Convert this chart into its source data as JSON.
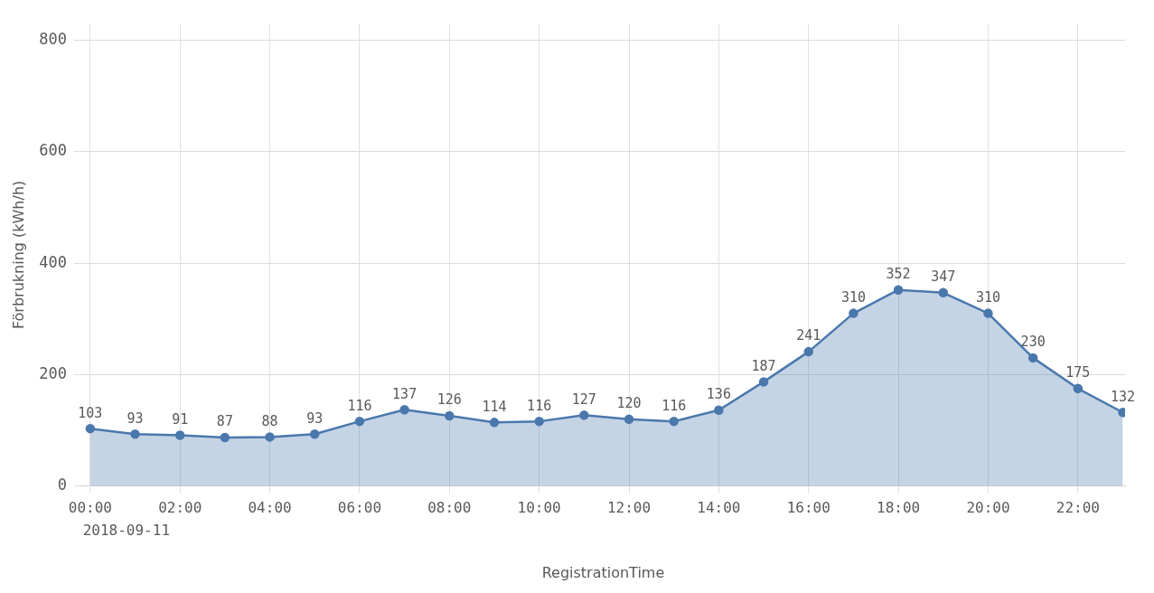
{
  "chart_data": {
    "type": "area",
    "xlabel": "RegistrationTime",
    "ylabel": "Förbrukning (kWh/h)",
    "x": [
      0,
      1,
      2,
      3,
      4,
      5,
      6,
      7,
      8,
      9,
      10,
      11,
      12,
      13,
      14,
      15,
      16,
      17,
      18,
      19,
      20,
      21,
      22,
      23
    ],
    "series": [
      {
        "color": "#4a78ad",
        "values": [
          103,
          93,
          91,
          87,
          88,
          93,
          116,
          137,
          126,
          114,
          116,
          127,
          120,
          116,
          136,
          187,
          241,
          310,
          352,
          347,
          310,
          230,
          175,
          132
        ]
      }
    ],
    "xlim": [
      -0.2,
      23.05
    ],
    "xticks": [
      {
        "value": 0,
        "label": "00:00"
      },
      {
        "value": 2,
        "label": "02:00"
      },
      {
        "value": 4,
        "label": "04:00"
      },
      {
        "value": 6,
        "label": "06:00"
      },
      {
        "value": 8,
        "label": "08:00"
      },
      {
        "value": 10,
        "label": "10:00"
      },
      {
        "value": 12,
        "label": "12:00"
      },
      {
        "value": 14,
        "label": "14:00"
      },
      {
        "value": 16,
        "label": "16:00"
      },
      {
        "value": 18,
        "label": "18:00"
      },
      {
        "value": 20,
        "label": "20:00"
      },
      {
        "value": 22,
        "label": "22:00"
      }
    ],
    "ylim": [
      0,
      830
    ],
    "yticks": [
      0,
      200,
      400,
      600,
      800
    ],
    "annotations": [
      "2018-09-11"
    ],
    "grid": true,
    "marker": "circle",
    "data_labels": true,
    "legend": false
  }
}
